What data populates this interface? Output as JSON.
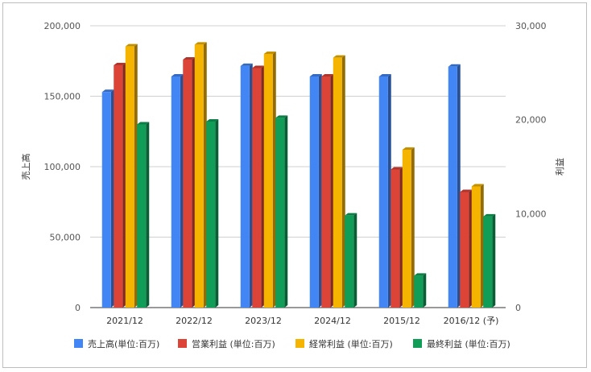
{
  "chart_data": {
    "type": "bar",
    "style": "3d-clustered-columns",
    "categories": [
      "2021/12",
      "2022/12",
      "2023/12",
      "2024/12",
      "2015/12",
      "2016/12 (予)"
    ],
    "series": [
      {
        "name": "売上高(単位:百万)",
        "axis": "left",
        "color": "#4285f4",
        "values": [
          153000,
          164000,
          171500,
          164000,
          164000,
          171000
        ]
      },
      {
        "name": "営業利益 (単位:百万)",
        "axis": "right",
        "color": "#db4437",
        "values": [
          25800,
          26400,
          25500,
          24600,
          14700,
          12300
        ]
      },
      {
        "name": "経常利益 (単位:百万)",
        "axis": "right",
        "color": "#f4b400",
        "values": [
          27800,
          28000,
          27000,
          26600,
          16800,
          12900
        ]
      },
      {
        "name": "最終利益 (単位:百万)",
        "axis": "right",
        "color": "#0f9d58",
        "values": [
          19500,
          19800,
          20200,
          9800,
          3400,
          9700
        ]
      }
    ],
    "y_left": {
      "label": "売上高",
      "ylim": [
        0,
        200000
      ],
      "ticks": [
        0,
        50000,
        100000,
        150000,
        200000
      ],
      "tick_labels": [
        "0",
        "50,000",
        "100,000",
        "150,000",
        "200,000"
      ]
    },
    "y_right": {
      "label": "利益",
      "ylim": [
        0,
        30000
      ],
      "ticks": [
        0,
        10000,
        20000,
        30000
      ],
      "tick_labels": [
        "0",
        "10,000",
        "20,000",
        "30,000"
      ]
    },
    "grid": true,
    "legend_position": "bottom"
  }
}
